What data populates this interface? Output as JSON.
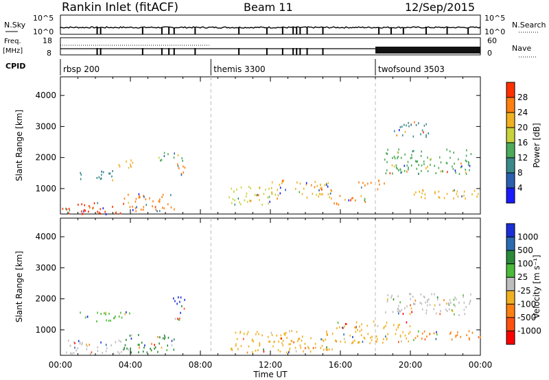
{
  "header": {
    "station": "Rankin Inlet (fitACF)",
    "beam": "Beam 11",
    "date": "12/Sep/2015"
  },
  "top_panels": {
    "nsky_label": "N.Sky",
    "nsky_ticks": [
      "10^5",
      "10^0"
    ],
    "nsearch_label": "N.Search",
    "nsearch_ticks": [
      "10^5",
      "10^0"
    ],
    "freq_label": "Freq.",
    "freq_unit": "[MHz]",
    "freq_ticks": [
      "18",
      "8"
    ],
    "nave_label": "Nave",
    "nave_ticks": [
      "60",
      "0"
    ],
    "cpid_label": "CPID",
    "cpid_segments": [
      {
        "name": "rbsp 200",
        "start_hour": 0
      },
      {
        "name": "themis 3300",
        "start_hour": 8.6
      },
      {
        "name": "twofsound 3503",
        "start_hour": 18
      }
    ]
  },
  "chart_data": [
    {
      "type": "heatmap",
      "title": "Power",
      "xlabel": "",
      "ylabel": "Slant Range [km]",
      "xlim": [
        0,
        24
      ],
      "ylim": [
        180,
        4600
      ],
      "x_ticks": [],
      "y_ticks": [
        "1000",
        "2000",
        "3000",
        "4000"
      ],
      "colorbar": {
        "label": "Power [dB]",
        "ticks": [
          "4",
          "8",
          "12",
          "16",
          "20",
          "24",
          "28"
        ],
        "colors": [
          "#1a1aff",
          "#2a5fb0",
          "#3b8a8a",
          "#4caa5a",
          "#c8d23c",
          "#f0b020",
          "#ff8010",
          "#ff3000"
        ]
      },
      "regions": [
        {
          "t0": 0.1,
          "t1": 3.6,
          "r0": 200,
          "r1": 600,
          "level": 28
        },
        {
          "t0": 3.6,
          "t1": 6.5,
          "r0": 300,
          "r1": 850,
          "level": 22
        },
        {
          "t0": 1.0,
          "t1": 3.0,
          "r0": 1300,
          "r1": 1600,
          "level": 8
        },
        {
          "t0": 3.2,
          "t1": 4.2,
          "r0": 1700,
          "r1": 2000,
          "level": 18
        },
        {
          "t0": 5.5,
          "t1": 7.0,
          "r0": 1900,
          "r1": 2200,
          "level": 12
        },
        {
          "t0": 6.6,
          "t1": 7.1,
          "r0": 1300,
          "r1": 1900,
          "level": 24
        },
        {
          "t0": 9.6,
          "t1": 12.0,
          "r0": 500,
          "r1": 1100,
          "level": 14
        },
        {
          "t0": 12.0,
          "t1": 15.5,
          "r0": 700,
          "r1": 1300,
          "level": 18
        },
        {
          "t0": 15.5,
          "t1": 17.5,
          "r0": 500,
          "r1": 800,
          "level": 24
        },
        {
          "t0": 17.0,
          "t1": 18.5,
          "r0": 1000,
          "r1": 1300,
          "level": 22
        },
        {
          "t0": 18.5,
          "t1": 23.5,
          "r0": 1500,
          "r1": 2300,
          "level": 12
        },
        {
          "t0": 20.0,
          "t1": 24.0,
          "r0": 700,
          "r1": 1000,
          "level": 20
        },
        {
          "t0": 19.0,
          "t1": 21.0,
          "r0": 2700,
          "r1": 3200,
          "level": 8
        }
      ]
    },
    {
      "type": "heatmap",
      "title": "Velocity",
      "xlabel": "Time UT",
      "ylabel": "Slant Range [km]",
      "xlim": [
        0,
        24
      ],
      "ylim": [
        180,
        4600
      ],
      "x_ticks": [
        "00:00",
        "04:00",
        "08:00",
        "12:00",
        "16:00",
        "20:00",
        "00:00"
      ],
      "y_ticks": [
        "1000",
        "2000",
        "3000",
        "4000"
      ],
      "colorbar": {
        "label": "Velocity [m s⁻¹]",
        "ticks": [
          "1000",
          "500",
          "100",
          "25",
          "-25",
          "-100",
          "-500",
          "-1000"
        ],
        "colors": [
          "#1a2ed8",
          "#2a6ab0",
          "#2a8a3a",
          "#4cbb3a",
          "#bdbdbd",
          "#f0b020",
          "#ff8010",
          "#ff5010",
          "#ff0000"
        ]
      },
      "regions": [
        {
          "t0": 0.1,
          "t1": 3.6,
          "r0": 250,
          "r1": 700,
          "level": -25
        },
        {
          "t0": 3.6,
          "t1": 6.5,
          "r0": 300,
          "r1": 900,
          "level": 100
        },
        {
          "t0": 1.0,
          "t1": 4.0,
          "r0": 1300,
          "r1": 1600,
          "level": 25
        },
        {
          "t0": 6.4,
          "t1": 7.1,
          "r0": 1300,
          "r1": 2100,
          "level": 1000
        },
        {
          "t0": 9.6,
          "t1": 15.5,
          "r0": 300,
          "r1": 1000,
          "level": -100
        },
        {
          "t0": 15.5,
          "t1": 20.0,
          "r0": 600,
          "r1": 1300,
          "level": -100
        },
        {
          "t0": 18.5,
          "t1": 23.5,
          "r0": 1500,
          "r1": 2200,
          "level": -25
        },
        {
          "t0": 20.0,
          "t1": 24.0,
          "r0": 700,
          "r1": 1000,
          "level": -500
        }
      ]
    }
  ]
}
